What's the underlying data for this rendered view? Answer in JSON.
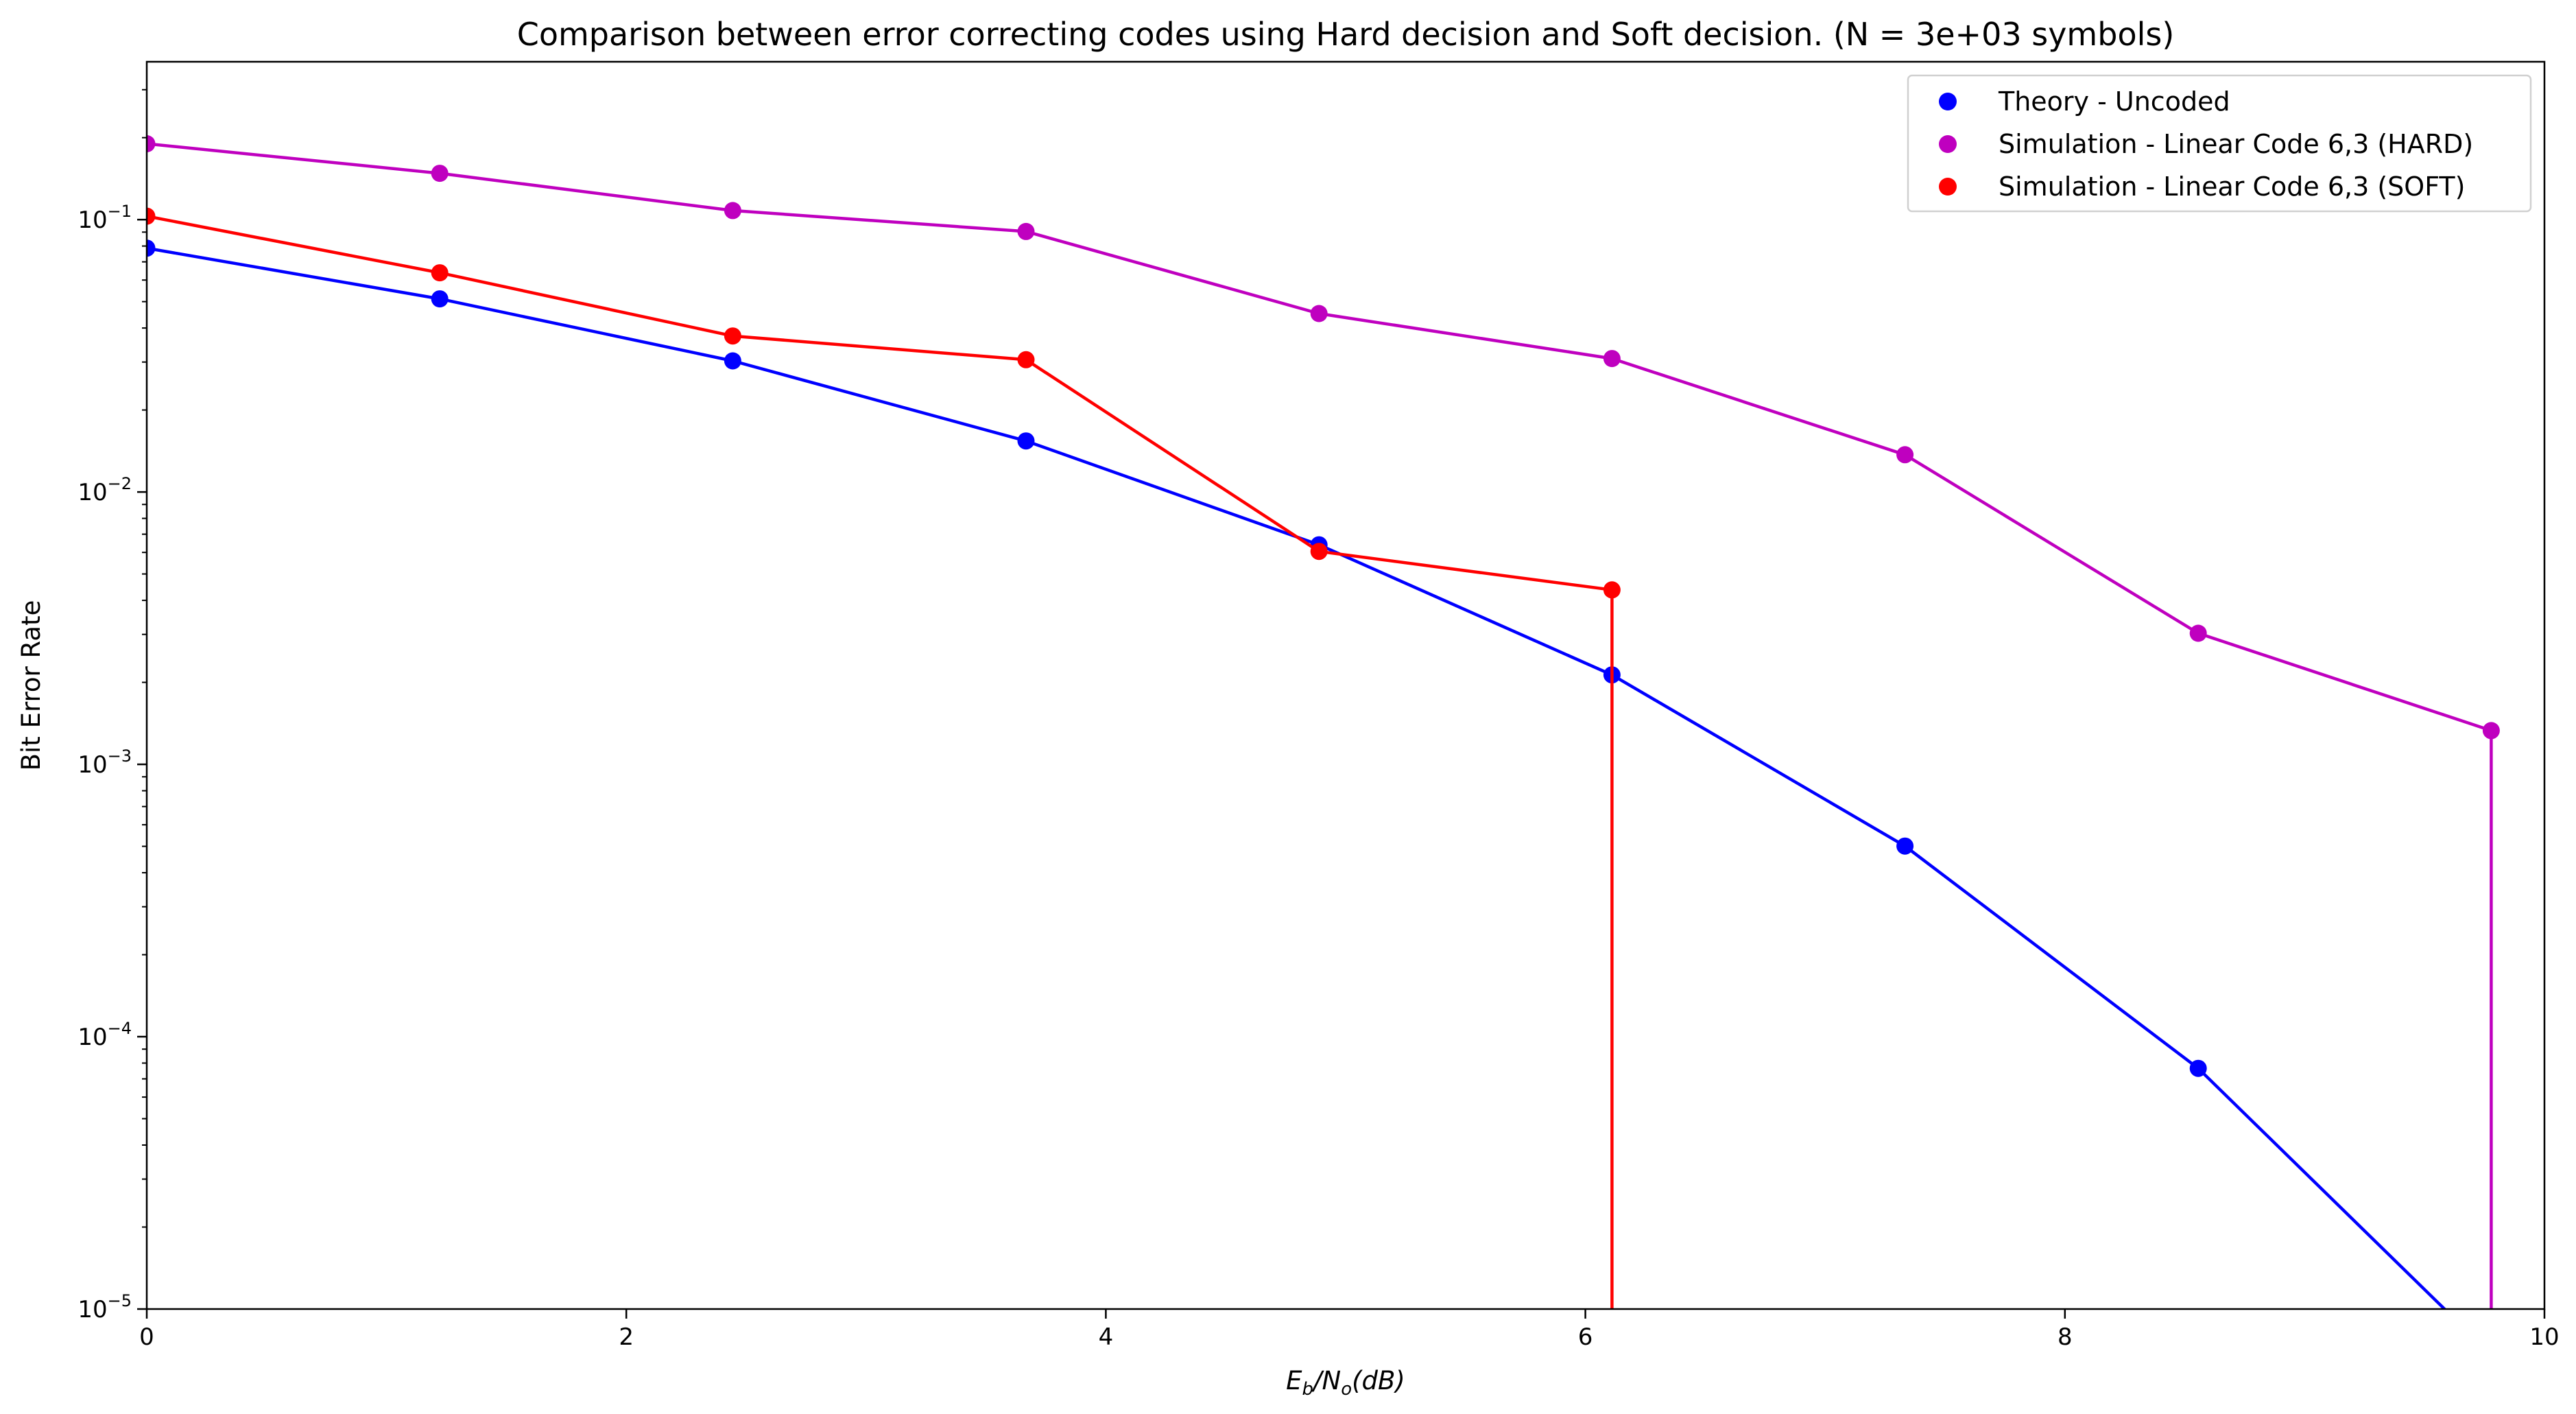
{
  "chart_data": {
    "type": "line",
    "title": "Comparison between error correcting codes using Hard decision and Soft decision. (N = 3e+03 symbols)",
    "xlabel": {
      "base": "E",
      "base_sub": "b",
      "mid": "/N",
      "mid_sub": "o",
      "tail": "(dB)"
    },
    "ylabel": "Bit Error Rate",
    "xlim": [
      0,
      10
    ],
    "ylim": [
      1e-05,
      0.38
    ],
    "yscale": "log",
    "x_ticks": [
      0,
      2,
      4,
      6,
      8,
      10
    ],
    "x_tick_labels": [
      "0",
      "2",
      "4",
      "6",
      "8",
      "10"
    ],
    "y_ticks": [
      {
        "value": 1e-05,
        "mantissa": "10",
        "exponent": "−5"
      },
      {
        "value": 0.0001,
        "mantissa": "10",
        "exponent": "−4"
      },
      {
        "value": 0.001,
        "mantissa": "10",
        "exponent": "−3"
      },
      {
        "value": 0.01,
        "mantissa": "10",
        "exponent": "−2"
      },
      {
        "value": 0.1,
        "mantissa": "10",
        "exponent": "−1"
      }
    ],
    "grid": false,
    "legend_position": "top-right",
    "series": [
      {
        "name": "Theory - Uncoded",
        "color": "#0000ff",
        "x": [
          0,
          1.222,
          2.444,
          3.667,
          4.889,
          6.111,
          7.333,
          8.556,
          9.778
        ],
        "y": [
          0.0786,
          0.0512,
          0.0303,
          0.0154,
          0.0064,
          0.00213,
          0.000501,
          7.65e-05,
          6.8e-06
        ]
      },
      {
        "name": "Simulation - Linear Code 6,3 (HARD)",
        "color": "#bf00bf",
        "x": [
          0,
          1.222,
          2.444,
          3.667,
          4.889,
          6.111,
          7.333,
          8.556,
          9.778
        ],
        "y": [
          0.19,
          0.148,
          0.108,
          0.0905,
          0.0452,
          0.0309,
          0.0137,
          0.00303,
          0.00133
        ],
        "drop_to_zero": true
      },
      {
        "name": "Simulation - Linear Code 6,3 (SOFT)",
        "color": "#ff0000",
        "x": [
          0,
          1.222,
          2.444,
          3.667,
          4.889,
          6.111
        ],
        "y": [
          0.103,
          0.0638,
          0.0374,
          0.0306,
          0.00605,
          0.00437
        ],
        "drop_to_zero": true
      }
    ]
  }
}
